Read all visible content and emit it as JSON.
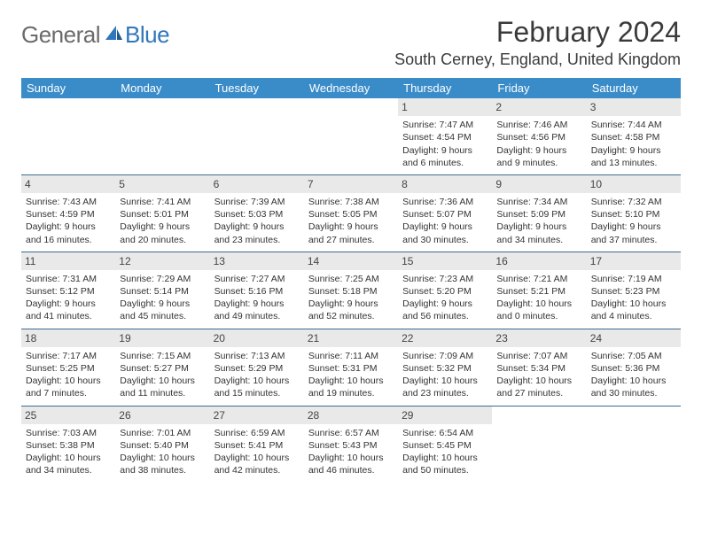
{
  "logo": {
    "text1": "General",
    "text2": "Blue"
  },
  "title": "February 2024",
  "location": "South Cerney, England, United Kingdom",
  "weekdays": [
    "Sunday",
    "Monday",
    "Tuesday",
    "Wednesday",
    "Thursday",
    "Friday",
    "Saturday"
  ],
  "colors": {
    "header_bg": "#3a8cc9",
    "header_text": "#ffffff",
    "daynum_bg": "#e9e9e9",
    "row_border": "#3a6a90",
    "title_color": "#3a3a3a",
    "logo_gray": "#6b6b6b",
    "logo_blue": "#2f77bb"
  },
  "weeks": [
    [
      null,
      null,
      null,
      null,
      {
        "n": "1",
        "sr": "Sunrise: 7:47 AM",
        "ss": "Sunset: 4:54 PM",
        "d1": "Daylight: 9 hours",
        "d2": "and 6 minutes."
      },
      {
        "n": "2",
        "sr": "Sunrise: 7:46 AM",
        "ss": "Sunset: 4:56 PM",
        "d1": "Daylight: 9 hours",
        "d2": "and 9 minutes."
      },
      {
        "n": "3",
        "sr": "Sunrise: 7:44 AM",
        "ss": "Sunset: 4:58 PM",
        "d1": "Daylight: 9 hours",
        "d2": "and 13 minutes."
      }
    ],
    [
      {
        "n": "4",
        "sr": "Sunrise: 7:43 AM",
        "ss": "Sunset: 4:59 PM",
        "d1": "Daylight: 9 hours",
        "d2": "and 16 minutes."
      },
      {
        "n": "5",
        "sr": "Sunrise: 7:41 AM",
        "ss": "Sunset: 5:01 PM",
        "d1": "Daylight: 9 hours",
        "d2": "and 20 minutes."
      },
      {
        "n": "6",
        "sr": "Sunrise: 7:39 AM",
        "ss": "Sunset: 5:03 PM",
        "d1": "Daylight: 9 hours",
        "d2": "and 23 minutes."
      },
      {
        "n": "7",
        "sr": "Sunrise: 7:38 AM",
        "ss": "Sunset: 5:05 PM",
        "d1": "Daylight: 9 hours",
        "d2": "and 27 minutes."
      },
      {
        "n": "8",
        "sr": "Sunrise: 7:36 AM",
        "ss": "Sunset: 5:07 PM",
        "d1": "Daylight: 9 hours",
        "d2": "and 30 minutes."
      },
      {
        "n": "9",
        "sr": "Sunrise: 7:34 AM",
        "ss": "Sunset: 5:09 PM",
        "d1": "Daylight: 9 hours",
        "d2": "and 34 minutes."
      },
      {
        "n": "10",
        "sr": "Sunrise: 7:32 AM",
        "ss": "Sunset: 5:10 PM",
        "d1": "Daylight: 9 hours",
        "d2": "and 37 minutes."
      }
    ],
    [
      {
        "n": "11",
        "sr": "Sunrise: 7:31 AM",
        "ss": "Sunset: 5:12 PM",
        "d1": "Daylight: 9 hours",
        "d2": "and 41 minutes."
      },
      {
        "n": "12",
        "sr": "Sunrise: 7:29 AM",
        "ss": "Sunset: 5:14 PM",
        "d1": "Daylight: 9 hours",
        "d2": "and 45 minutes."
      },
      {
        "n": "13",
        "sr": "Sunrise: 7:27 AM",
        "ss": "Sunset: 5:16 PM",
        "d1": "Daylight: 9 hours",
        "d2": "and 49 minutes."
      },
      {
        "n": "14",
        "sr": "Sunrise: 7:25 AM",
        "ss": "Sunset: 5:18 PM",
        "d1": "Daylight: 9 hours",
        "d2": "and 52 minutes."
      },
      {
        "n": "15",
        "sr": "Sunrise: 7:23 AM",
        "ss": "Sunset: 5:20 PM",
        "d1": "Daylight: 9 hours",
        "d2": "and 56 minutes."
      },
      {
        "n": "16",
        "sr": "Sunrise: 7:21 AM",
        "ss": "Sunset: 5:21 PM",
        "d1": "Daylight: 10 hours",
        "d2": "and 0 minutes."
      },
      {
        "n": "17",
        "sr": "Sunrise: 7:19 AM",
        "ss": "Sunset: 5:23 PM",
        "d1": "Daylight: 10 hours",
        "d2": "and 4 minutes."
      }
    ],
    [
      {
        "n": "18",
        "sr": "Sunrise: 7:17 AM",
        "ss": "Sunset: 5:25 PM",
        "d1": "Daylight: 10 hours",
        "d2": "and 7 minutes."
      },
      {
        "n": "19",
        "sr": "Sunrise: 7:15 AM",
        "ss": "Sunset: 5:27 PM",
        "d1": "Daylight: 10 hours",
        "d2": "and 11 minutes."
      },
      {
        "n": "20",
        "sr": "Sunrise: 7:13 AM",
        "ss": "Sunset: 5:29 PM",
        "d1": "Daylight: 10 hours",
        "d2": "and 15 minutes."
      },
      {
        "n": "21",
        "sr": "Sunrise: 7:11 AM",
        "ss": "Sunset: 5:31 PM",
        "d1": "Daylight: 10 hours",
        "d2": "and 19 minutes."
      },
      {
        "n": "22",
        "sr": "Sunrise: 7:09 AM",
        "ss": "Sunset: 5:32 PM",
        "d1": "Daylight: 10 hours",
        "d2": "and 23 minutes."
      },
      {
        "n": "23",
        "sr": "Sunrise: 7:07 AM",
        "ss": "Sunset: 5:34 PM",
        "d1": "Daylight: 10 hours",
        "d2": "and 27 minutes."
      },
      {
        "n": "24",
        "sr": "Sunrise: 7:05 AM",
        "ss": "Sunset: 5:36 PM",
        "d1": "Daylight: 10 hours",
        "d2": "and 30 minutes."
      }
    ],
    [
      {
        "n": "25",
        "sr": "Sunrise: 7:03 AM",
        "ss": "Sunset: 5:38 PM",
        "d1": "Daylight: 10 hours",
        "d2": "and 34 minutes."
      },
      {
        "n": "26",
        "sr": "Sunrise: 7:01 AM",
        "ss": "Sunset: 5:40 PM",
        "d1": "Daylight: 10 hours",
        "d2": "and 38 minutes."
      },
      {
        "n": "27",
        "sr": "Sunrise: 6:59 AM",
        "ss": "Sunset: 5:41 PM",
        "d1": "Daylight: 10 hours",
        "d2": "and 42 minutes."
      },
      {
        "n": "28",
        "sr": "Sunrise: 6:57 AM",
        "ss": "Sunset: 5:43 PM",
        "d1": "Daylight: 10 hours",
        "d2": "and 46 minutes."
      },
      {
        "n": "29",
        "sr": "Sunrise: 6:54 AM",
        "ss": "Sunset: 5:45 PM",
        "d1": "Daylight: 10 hours",
        "d2": "and 50 minutes."
      },
      null,
      null
    ]
  ]
}
